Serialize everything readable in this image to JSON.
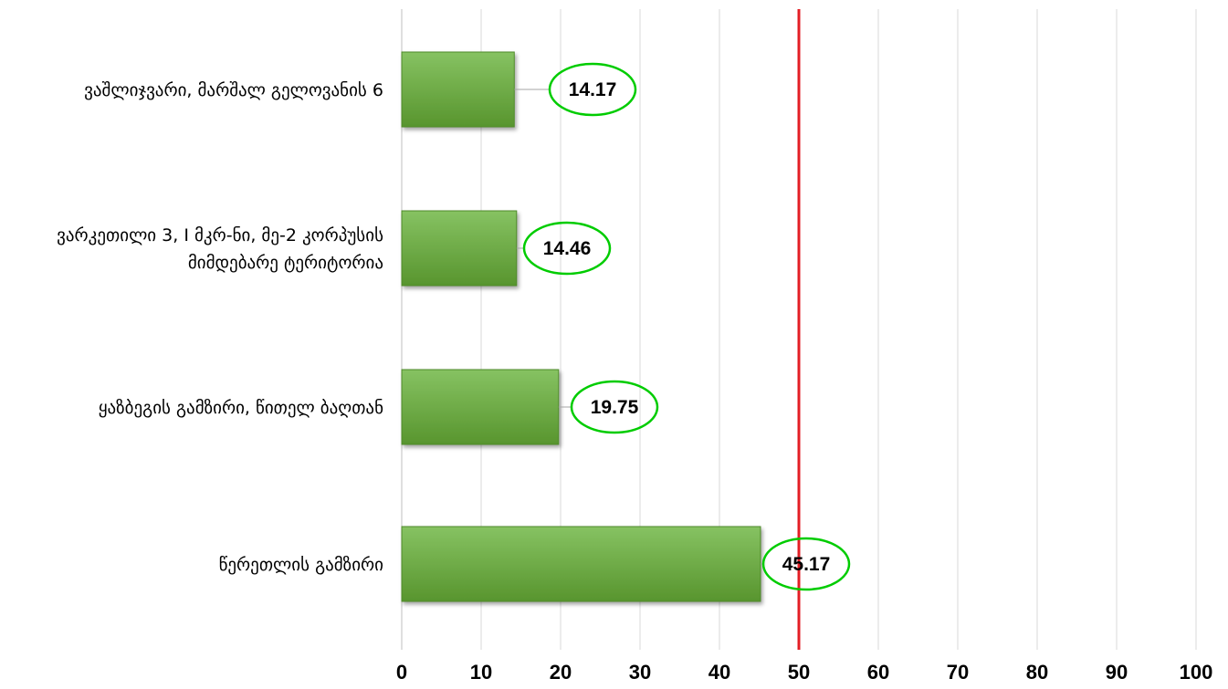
{
  "chart_data": {
    "type": "bar",
    "orientation": "horizontal",
    "categories": [
      "ვაშლიჯვარი, მარშალ გელოვანის 6",
      "ვარკეთილი 3, I მკრ-ნი, მე-2 კორპუსის მიმდებარე ტერიტორია",
      "ყაზბეგის გამზირი, წითელ ბაღთან",
      "წერეთლის გამზირი"
    ],
    "values": [
      14.17,
      14.46,
      19.75,
      45.17
    ],
    "data_labels": [
      "14.17",
      "14.46",
      "19.75",
      "45.17"
    ],
    "xlim": [
      0,
      100
    ],
    "xticks": [
      0,
      10,
      20,
      30,
      40,
      50,
      60,
      70,
      80,
      90,
      100
    ],
    "xtick_labels": [
      "0",
      "10",
      "20",
      "30",
      "40",
      "50",
      "60",
      "70",
      "80",
      "90",
      "100"
    ],
    "reference_line": 50,
    "grid": true,
    "legend": false,
    "title": "",
    "xlabel": "",
    "ylabel": "",
    "colors": {
      "bar_top": "#86c262",
      "bar_bottom": "#58952e",
      "bar_border": "#4f8a2c",
      "reference_line": "#e31e24",
      "label_ellipse": "#00cc00",
      "grid": "#d9d9d9"
    }
  }
}
